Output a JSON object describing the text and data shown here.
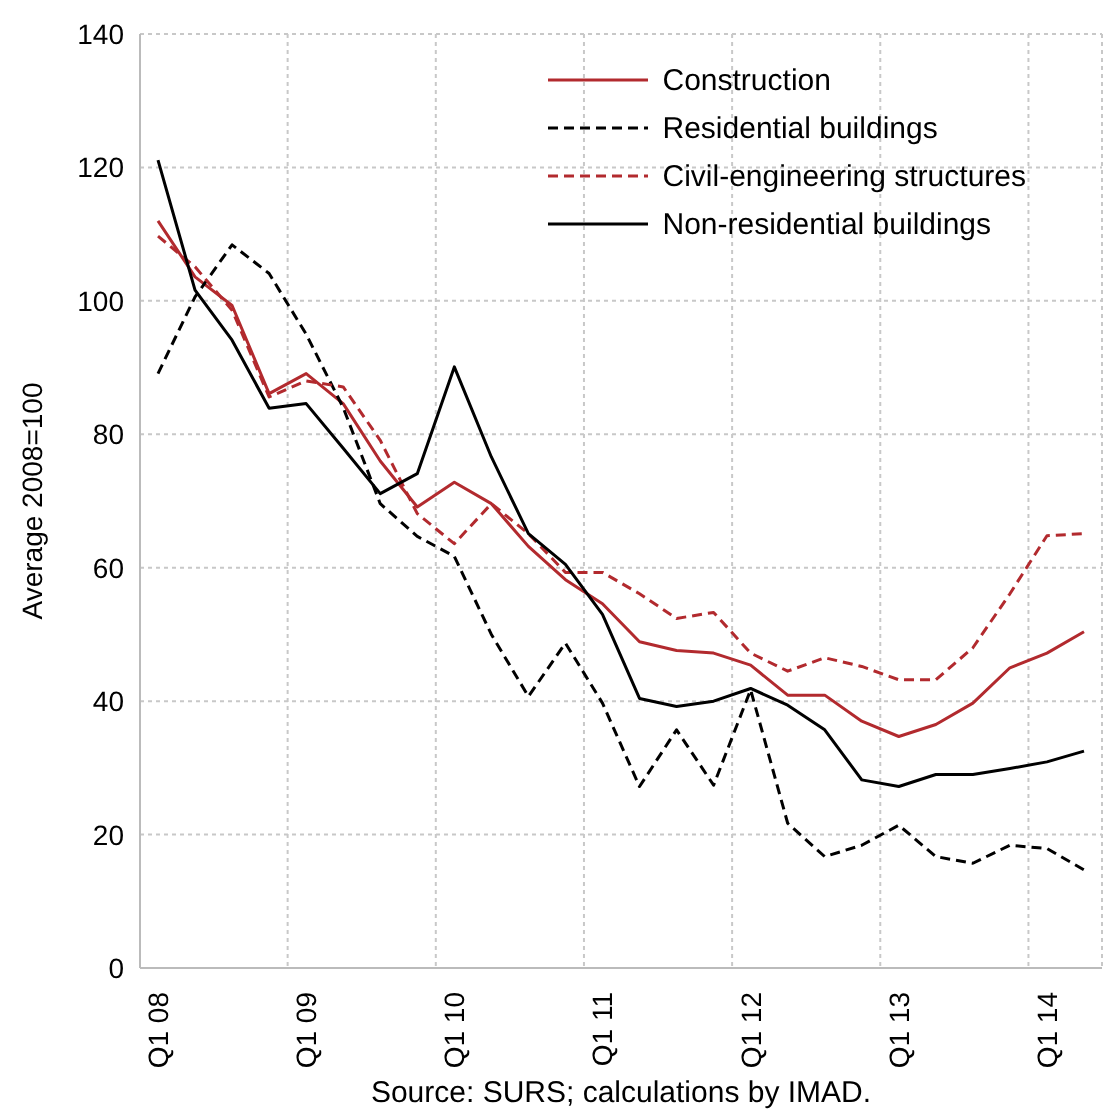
{
  "chart_data": {
    "type": "line",
    "ylabel": "Average 2008=100",
    "categories": [
      "Q1 08",
      null,
      null,
      null,
      "Q1 09",
      null,
      null,
      null,
      "Q1 10",
      null,
      null,
      null,
      "Q1 11",
      null,
      null,
      null,
      "Q1 12",
      null,
      null,
      null,
      "Q1 13",
      null,
      null,
      null,
      "Q1 14",
      null
    ],
    "series": [
      {
        "name": "Construction",
        "color": "#b22a2e",
        "line_style": "solid",
        "values": [
          112,
          103.6,
          99.3,
          86.1,
          89.1,
          84.6,
          76,
          69.1,
          72.8,
          69.6,
          63.2,
          58.2,
          54.6,
          48.9,
          47.6,
          47.2,
          45.4,
          40.9,
          40.9,
          37,
          34.7,
          36.5,
          39.7,
          45,
          47.2,
          50.4
        ]
      },
      {
        "name": "Residential buildings",
        "color": "#000000",
        "line_style": "dashed",
        "values": [
          89.1,
          100.6,
          108.4,
          104.1,
          95,
          84,
          69.6,
          64.7,
          61.7,
          50,
          40.7,
          48.7,
          39.7,
          27.2,
          35.7,
          27.4,
          41.7,
          21.7,
          16.7,
          18.4,
          21.4,
          16.7,
          15.7,
          18.4,
          17.9,
          14.7
        ]
      },
      {
        "name": "Civil-engineering structures",
        "color": "#b22a2e",
        "line_style": "dashed",
        "values": [
          109.7,
          105.1,
          98.6,
          85.6,
          88,
          87.1,
          79.1,
          68.1,
          63.6,
          69.6,
          65.1,
          59.3,
          59.3,
          56.1,
          52.4,
          53.3,
          47.2,
          44.5,
          46.5,
          45.2,
          43.2,
          43.2,
          48,
          56.1,
          64.8,
          65.1
        ]
      },
      {
        "name": "Non-residential buildings",
        "color": "#000000",
        "line_style": "solid",
        "values": [
          121.1,
          101.6,
          94.1,
          83.9,
          84.6,
          77.9,
          71.1,
          74.1,
          90.1,
          76.6,
          65.1,
          60.5,
          53,
          40.4,
          39.2,
          40,
          41.9,
          39.4,
          35.7,
          28.2,
          27.2,
          29,
          29,
          29.9,
          30.9,
          32.5
        ]
      }
    ],
    "ylim": [
      0,
      140
    ],
    "yticks": [
      0,
      20,
      40,
      60,
      80,
      100,
      120,
      140
    ],
    "grid": true,
    "legend": "top right",
    "annotations": [
      "Source: SURS; calculations by IMAD."
    ]
  }
}
